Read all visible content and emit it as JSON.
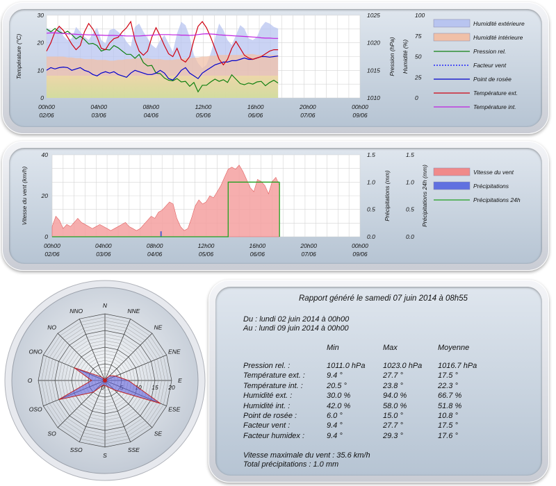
{
  "chart_data": [
    {
      "type": "line",
      "title": "",
      "x_tick_labels": [
        [
          "00h00",
          "02/06"
        ],
        [
          "04h00",
          "03/06"
        ],
        [
          "08h00",
          "04/06"
        ],
        [
          "12h00",
          "05/06"
        ],
        [
          "16h00",
          "06/06"
        ],
        [
          "20h00",
          "07/06"
        ],
        [
          "00h00",
          "09/06"
        ]
      ],
      "y_left": {
        "label": "Température (°C)",
        "range": [
          0,
          30
        ],
        "ticks": [
          0,
          10,
          20,
          30
        ]
      },
      "y_right1": {
        "label": "Pression (hPa)",
        "range": [
          1010,
          1025
        ],
        "ticks": [
          1010,
          1015,
          1020,
          1025
        ]
      },
      "y_right2": {
        "label": "Humidité (%)",
        "range": [
          0,
          100
        ],
        "ticks": [
          0,
          25,
          50,
          75,
          100
        ]
      },
      "legend_placement": "right",
      "grid": true,
      "series": [
        {
          "name": "Humidité extérieure",
          "kind": "area",
          "axis": "humidity",
          "color": "#b8c4f0",
          "values": [
            85,
            82,
            80,
            88,
            75,
            70,
            72,
            86,
            80,
            74,
            70,
            78,
            85,
            70,
            66,
            82,
            84,
            80,
            76,
            68,
            62,
            86,
            90,
            80,
            72,
            64,
            60,
            70,
            76,
            66,
            56,
            78,
            92,
            88,
            74,
            52,
            42,
            36,
            40,
            54,
            72,
            90,
            82,
            70,
            64,
            76,
            88,
            84,
            72,
            70,
            74,
            86,
            92,
            90,
            86,
            84
          ]
        },
        {
          "name": "Humidité intérieure",
          "kind": "area",
          "axis": "humidity",
          "color": "#f0c0a8",
          "values": [
            50,
            50,
            50,
            50,
            50,
            49,
            49,
            48,
            48,
            47,
            47,
            47,
            46,
            46,
            46,
            45,
            45,
            46,
            46,
            47,
            47,
            48,
            48,
            48,
            48,
            47,
            47,
            47,
            46,
            46,
            46,
            47,
            47,
            48,
            48,
            49,
            49,
            50,
            50,
            51,
            51,
            52,
            52,
            52,
            52,
            52,
            52,
            53,
            53,
            53,
            52,
            52,
            52,
            52,
            52,
            52
          ]
        },
        {
          "name": "Pression rel.",
          "kind": "line",
          "axis": "pressure",
          "color": "#108010",
          "values": [
            1022.5,
            1022.0,
            1022.6,
            1022.0,
            1021.7,
            1022.1,
            1021.5,
            1020.7,
            1021.2,
            1020.6,
            1019.8,
            1019.9,
            1019.5,
            1018.5,
            1018.8,
            1018.7,
            1019.5,
            1019.1,
            1018.5,
            1017.9,
            1017.9,
            1017.2,
            1017.9,
            1016.4,
            1015.8,
            1015.9,
            1014.5,
            1014.4,
            1013.6,
            1013.2,
            1013.1,
            1013.5,
            1012.9,
            1013.0,
            1012.1,
            1012.8,
            1011.1,
            1012.3,
            1012.3,
            1012.9,
            1013.4,
            1013.0,
            1013.3,
            1012.8,
            1014.2,
            1013.4,
            1012.6,
            1012.4,
            1012.7,
            1012.5,
            1012.9,
            1013.0,
            1012.2,
            1012.8,
            1013.2,
            1012.7
          ]
        },
        {
          "name": "Facteur vent",
          "kind": "line",
          "axis": "temperature",
          "color": "#0000ff",
          "dashed": true,
          "values": []
        },
        {
          "name": "Point de rosée",
          "kind": "line",
          "axis": "temperature",
          "color": "#0000cc",
          "values": [
            10.0,
            11.0,
            10.5,
            11.0,
            11.2,
            11.0,
            10.0,
            10.5,
            11.0,
            10.0,
            9.5,
            8.5,
            8.0,
            9.0,
            9.5,
            9.0,
            9.5,
            8.5,
            8.0,
            7.5,
            9.0,
            10.0,
            9.5,
            9.0,
            8.5,
            8.5,
            9.0,
            10.0,
            9.0,
            7.0,
            6.5,
            8.0,
            10.0,
            11.0,
            9.0,
            8.0,
            7.0,
            9.0,
            10.0,
            11.0,
            12.0,
            12.5,
            13.0,
            13.0,
            13.5,
            13.5,
            14.0,
            14.5,
            14.0,
            14.0,
            14.5,
            15.0,
            15.0,
            14.8,
            15.0,
            15.2
          ]
        },
        {
          "name": "Température ext.",
          "kind": "line",
          "axis": "temperature",
          "color": "#d00010",
          "values": [
            17.0,
            20.0,
            24.0,
            26.0,
            24.5,
            22.0,
            19.5,
            17.5,
            19.0,
            24.0,
            27.0,
            25.0,
            22.0,
            18.0,
            17.5,
            20.0,
            21.5,
            22.0,
            24.0,
            25.5,
            27.7,
            21.0,
            17.0,
            15.5,
            17.0,
            22.0,
            25.5,
            22.5,
            19.0,
            16.0,
            15.0,
            18.0,
            14.0,
            13.0,
            15.0,
            21.0,
            26.0,
            27.7,
            25.5,
            22.0,
            18.0,
            14.0,
            12.0,
            14.0,
            18.0,
            20.5,
            18.0,
            15.5,
            14.5,
            14.0,
            14.5,
            15.0,
            16.0,
            17.0,
            17.5,
            17.5
          ]
        },
        {
          "name": "Température int.",
          "kind": "line",
          "axis": "temperature",
          "color": "#c020e0",
          "values": [
            23.5,
            23.6,
            23.6,
            23.5,
            23.4,
            23.3,
            23.2,
            23.1,
            23.0,
            23.0,
            22.9,
            22.9,
            22.8,
            22.8,
            22.7,
            22.7,
            22.7,
            22.6,
            22.6,
            22.5,
            22.5,
            22.5,
            22.5,
            22.6,
            22.7,
            22.8,
            22.9,
            23.0,
            23.0,
            23.0,
            22.9,
            22.9,
            22.8,
            22.8,
            22.7,
            22.8,
            23.0,
            23.2,
            23.3,
            23.2,
            23.1,
            22.9,
            22.8,
            22.7,
            22.6,
            22.5,
            22.4,
            22.3,
            22.2,
            22.1,
            22.0,
            21.8,
            21.7,
            21.7,
            21.6,
            21.6
          ]
        }
      ]
    },
    {
      "type": "area",
      "title": "",
      "x_tick_labels": [
        [
          "00h00",
          "02/06"
        ],
        [
          "04h00",
          "03/06"
        ],
        [
          "08h00",
          "04/06"
        ],
        [
          "12h00",
          "05/06"
        ],
        [
          "16h00",
          "06/06"
        ],
        [
          "20h00",
          "07/06"
        ],
        [
          "00h00",
          "09/06"
        ]
      ],
      "y_left": {
        "label": "Vitesse du vent (km/h)",
        "range": [
          0,
          40
        ],
        "ticks": [
          0,
          20,
          40
        ]
      },
      "y_right1": {
        "label": "Précipitations (mm)",
        "range": [
          0,
          1.5
        ],
        "ticks": [
          "0.0",
          "0.5",
          "1.0",
          "1.5"
        ]
      },
      "y_right2": {
        "label": "Précipitations 24h (mm)",
        "range": [
          0,
          1.5
        ],
        "ticks": [
          "0.0",
          "0.5",
          "1.0",
          "1.5"
        ]
      },
      "legend_placement": "right",
      "grid": true,
      "series": [
        {
          "name": "Vitesse du vent",
          "kind": "area",
          "axis": "wind",
          "color": "#f4a0a0",
          "values": [
            5,
            10,
            8,
            4,
            6,
            5,
            7,
            9,
            7,
            6,
            5,
            4,
            5,
            6,
            5,
            4,
            3,
            4,
            5,
            6,
            7,
            5,
            4,
            3,
            4,
            6,
            8,
            10,
            9,
            12,
            13,
            15,
            17,
            16,
            9,
            5,
            3,
            4,
            9,
            15,
            18,
            16,
            17,
            20,
            19,
            22,
            25,
            29,
            33,
            34,
            33,
            35,
            32,
            28,
            24,
            22,
            28,
            27,
            25,
            21,
            27,
            29,
            25
          ]
        },
        {
          "name": "Précipitations",
          "kind": "bar",
          "axis": "precip",
          "color": "#6070e0",
          "values": [
            {
              "x_index": 29.5,
              "value": 0.1
            }
          ]
        },
        {
          "name": "Précipitations 24h",
          "kind": "step",
          "axis": "precip",
          "color": "#20a020",
          "values": [
            0,
            0,
            0,
            0,
            0,
            0,
            0,
            0,
            0,
            0,
            0,
            0,
            0,
            0,
            0,
            0,
            0,
            0,
            0,
            0,
            0,
            0,
            0,
            0,
            0,
            0,
            0,
            0,
            0,
            0,
            0,
            0,
            0,
            0,
            0,
            0,
            0,
            0,
            0,
            0,
            0,
            0,
            0,
            0,
            0,
            0,
            0,
            0,
            1.0,
            1.0,
            1.0,
            1.0,
            1.0,
            1.0,
            1.0,
            1.0,
            1.0,
            1.0,
            1.0,
            1.0,
            1.0,
            1.0,
            1.0
          ]
        }
      ]
    },
    {
      "type": "radar",
      "title": "",
      "directions": [
        "N",
        "NNE",
        "NE",
        "ENE",
        "E",
        "ESE",
        "SE",
        "SSE",
        "S",
        "SSO",
        "SO",
        "OSO",
        "O",
        "ONO",
        "NO",
        "NNO"
      ],
      "direction_labels": [
        "N",
        "NNE",
        "NE",
        "ENE",
        "E",
        "ESE",
        "SE",
        "SSE",
        "S",
        "SSO",
        "SO",
        "OSO",
        "O",
        "ONO",
        "NO",
        "NNO"
      ],
      "radial_ticks": [
        "0",
        "5",
        "10",
        "15",
        "20"
      ],
      "radial_range": [
        0,
        20
      ],
      "grid": true,
      "series": [
        {
          "name": "wind",
          "color": "#7070d8",
          "values": [
            0.3,
            0.5,
            2,
            3.5,
            7,
            18,
            4,
            2,
            1.5,
            1.5,
            5,
            15,
            4,
            10,
            1.5,
            0.5
          ]
        }
      ]
    }
  ],
  "legend1": [
    "Humidité extérieure",
    "Humidité intérieure",
    "Pression rel.",
    "Facteur vent",
    "Point de rosée",
    "Température ext.",
    "Température int."
  ],
  "legend2": [
    "Vitesse du vent",
    "Précipitations",
    "Précipitations 24h"
  ],
  "report": {
    "title": "Rapport généré le samedi 07 juin 2014 à 08h55",
    "from": "Du : lundi 02 juin 2014 à 00h00",
    "to": "Au : lundi 09 juin 2014 à 00h00",
    "headers": [
      "Min",
      "Max",
      "Moyenne"
    ],
    "rows": [
      {
        "label": "Pression rel. :",
        "min": "1011.0 hPa",
        "max": "1023.0 hPa",
        "avg": "1016.7 hPa"
      },
      {
        "label": "Température ext. :",
        "min": "9.4 °",
        "max": "27.7 °",
        "avg": "17.5 °"
      },
      {
        "label": "Température int. :",
        "min": "20.5 °",
        "max": "23.8 °",
        "avg": "22.3 °"
      },
      {
        "label": "Humidité ext. :",
        "min": "30.0 %",
        "max": "94.0 %",
        "avg": "66.7 %"
      },
      {
        "label": "Humidité int. :",
        "min": "42.0 %",
        "max": "58.0 %",
        "avg": "51.8 %"
      },
      {
        "label": "Point de rosée :",
        "min": "6.0 °",
        "max": "15.0 °",
        "avg": "10.8 °"
      },
      {
        "label": "Facteur vent :",
        "min": "9.4 °",
        "max": "27.7 °",
        "avg": "17.5 °"
      },
      {
        "label": "Facteur humidex :",
        "min": "9.4 °",
        "max": "29.3 °",
        "avg": "17.6 °"
      }
    ],
    "wind_max": "Vitesse maximale du vent : 35.6 km/h",
    "precip_total": "Total précipitations : 1.0 mm"
  }
}
